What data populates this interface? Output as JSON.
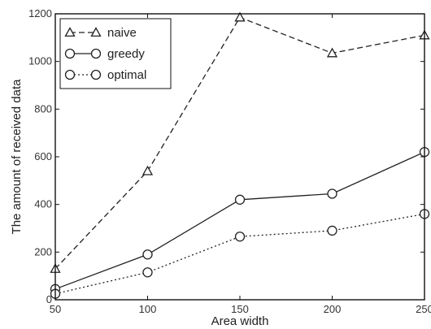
{
  "chart_data": {
    "type": "line",
    "title": "",
    "xlabel": "Area width",
    "ylabel": "The amount of received data",
    "x": [
      50,
      100,
      150,
      200,
      250
    ],
    "xlim": [
      50,
      250
    ],
    "ylim": [
      0,
      1200
    ],
    "xticks": [
      "50",
      "100",
      "150",
      "200",
      "250"
    ],
    "yticks": [
      "0",
      "200",
      "400",
      "600",
      "800",
      "1000",
      "1200"
    ],
    "xtick_values": [
      50,
      100,
      150,
      200,
      250
    ],
    "ytick_values": [
      0,
      200,
      400,
      600,
      800,
      1000,
      1200
    ],
    "grid": false,
    "legend_position": "top-left",
    "series": [
      {
        "name": "naive",
        "values": [
          130,
          540,
          1185,
          1035,
          1110
        ],
        "style": "dashed",
        "marker": "triangle",
        "color": "#222222"
      },
      {
        "name": "greedy",
        "values": [
          45,
          190,
          420,
          445,
          620
        ],
        "style": "solid",
        "marker": "circle",
        "color": "#222222"
      },
      {
        "name": "optimal",
        "values": [
          25,
          115,
          265,
          290,
          360
        ],
        "style": "dotted",
        "marker": "circle",
        "color": "#222222"
      }
    ]
  }
}
